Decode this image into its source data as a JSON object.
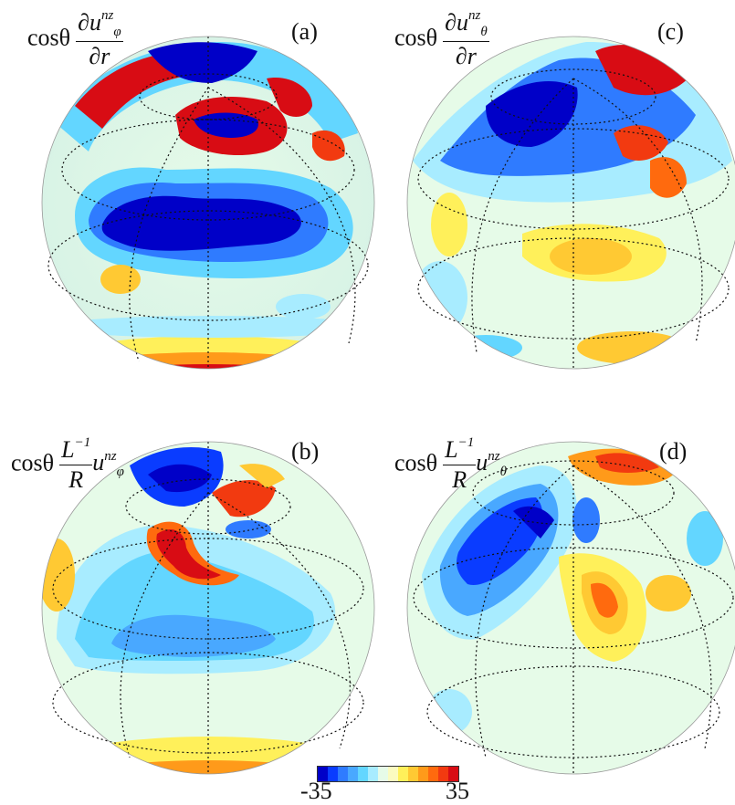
{
  "panels": [
    {
      "label": "(a)",
      "prefix": "cosθ",
      "num": "∂u",
      "num_sub": "φ",
      "num_sup": "nz",
      "den": "∂r",
      "tail": "",
      "tail_sub": "",
      "tail_sup": ""
    },
    {
      "label": "(b)",
      "prefix": "cosθ",
      "num": "L",
      "num_sub": "",
      "num_sup": "−1",
      "den": "R",
      "tail": "u",
      "tail_sub": "φ",
      "tail_sup": "nz"
    },
    {
      "label": "(c)",
      "prefix": "cosθ",
      "num": "∂u",
      "num_sub": "θ",
      "num_sup": "nz",
      "den": "∂r",
      "tail": "",
      "tail_sub": "",
      "tail_sup": ""
    },
    {
      "label": "(d)",
      "prefix": "cosθ",
      "num": "L",
      "num_sub": "",
      "num_sup": "−1",
      "den": "R",
      "tail": "u",
      "tail_sub": "θ",
      "tail_sup": "nz"
    }
  ],
  "colorbar": {
    "min_label": "-35",
    "max_label": "35",
    "colors": [
      "#0000c8",
      "#0a3cff",
      "#2f7bff",
      "#49a8ff",
      "#63d6ff",
      "#a8ecff",
      "#e6fbe8",
      "#fbfbc0",
      "#fff05a",
      "#ffc933",
      "#ff9a1a",
      "#ff6a0e",
      "#f23a10",
      "#d80c14"
    ]
  }
}
